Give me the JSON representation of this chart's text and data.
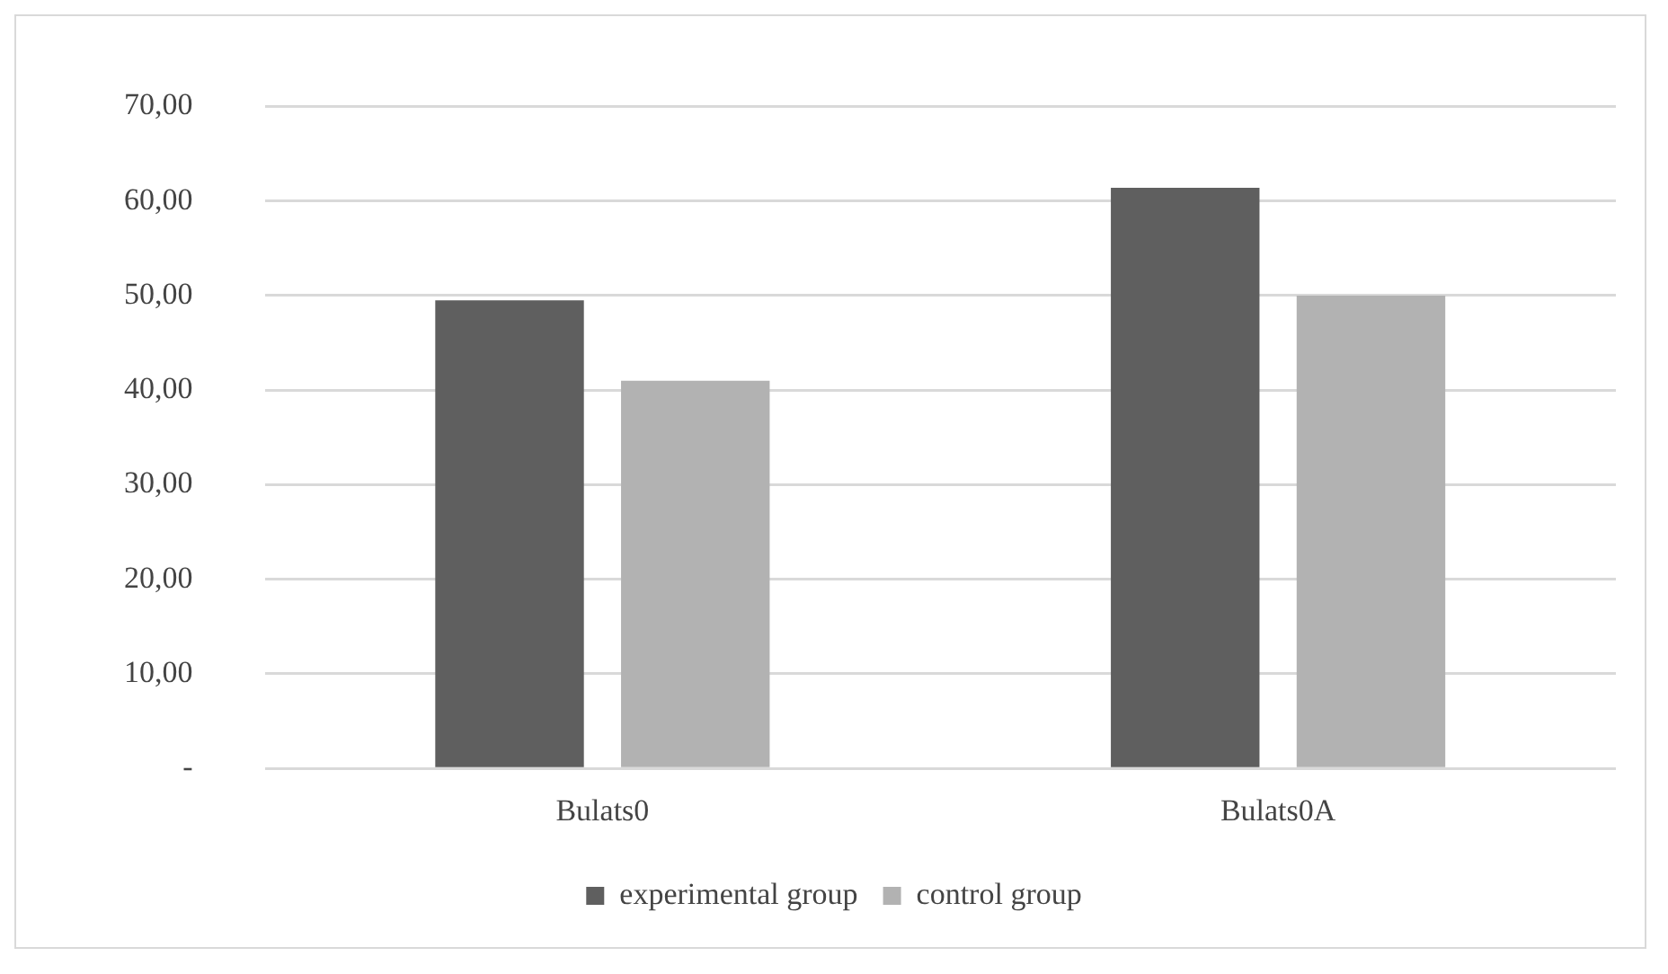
{
  "chart_data": {
    "type": "bar",
    "categories": [
      "Bulats0",
      "Bulats0A"
    ],
    "series": [
      {
        "name": "experimental group",
        "color": "#5f5f5f",
        "values": [
          49.5,
          61.4
        ]
      },
      {
        "name": "control group",
        "color": "#b2b2b2",
        "values": [
          41.0,
          50.0
        ]
      }
    ],
    "ylim": [
      0,
      70
    ],
    "yticks": [
      {
        "value": 0,
        "label": "-"
      },
      {
        "value": 10,
        "label": "10,00"
      },
      {
        "value": 20,
        "label": "20,00"
      },
      {
        "value": 30,
        "label": "30,00"
      },
      {
        "value": 40,
        "label": "40,00"
      },
      {
        "value": 50,
        "label": "50,00"
      },
      {
        "value": 60,
        "label": "60,00"
      },
      {
        "value": 70,
        "label": "70,00"
      }
    ],
    "grid": "y",
    "legend": "bottom"
  }
}
